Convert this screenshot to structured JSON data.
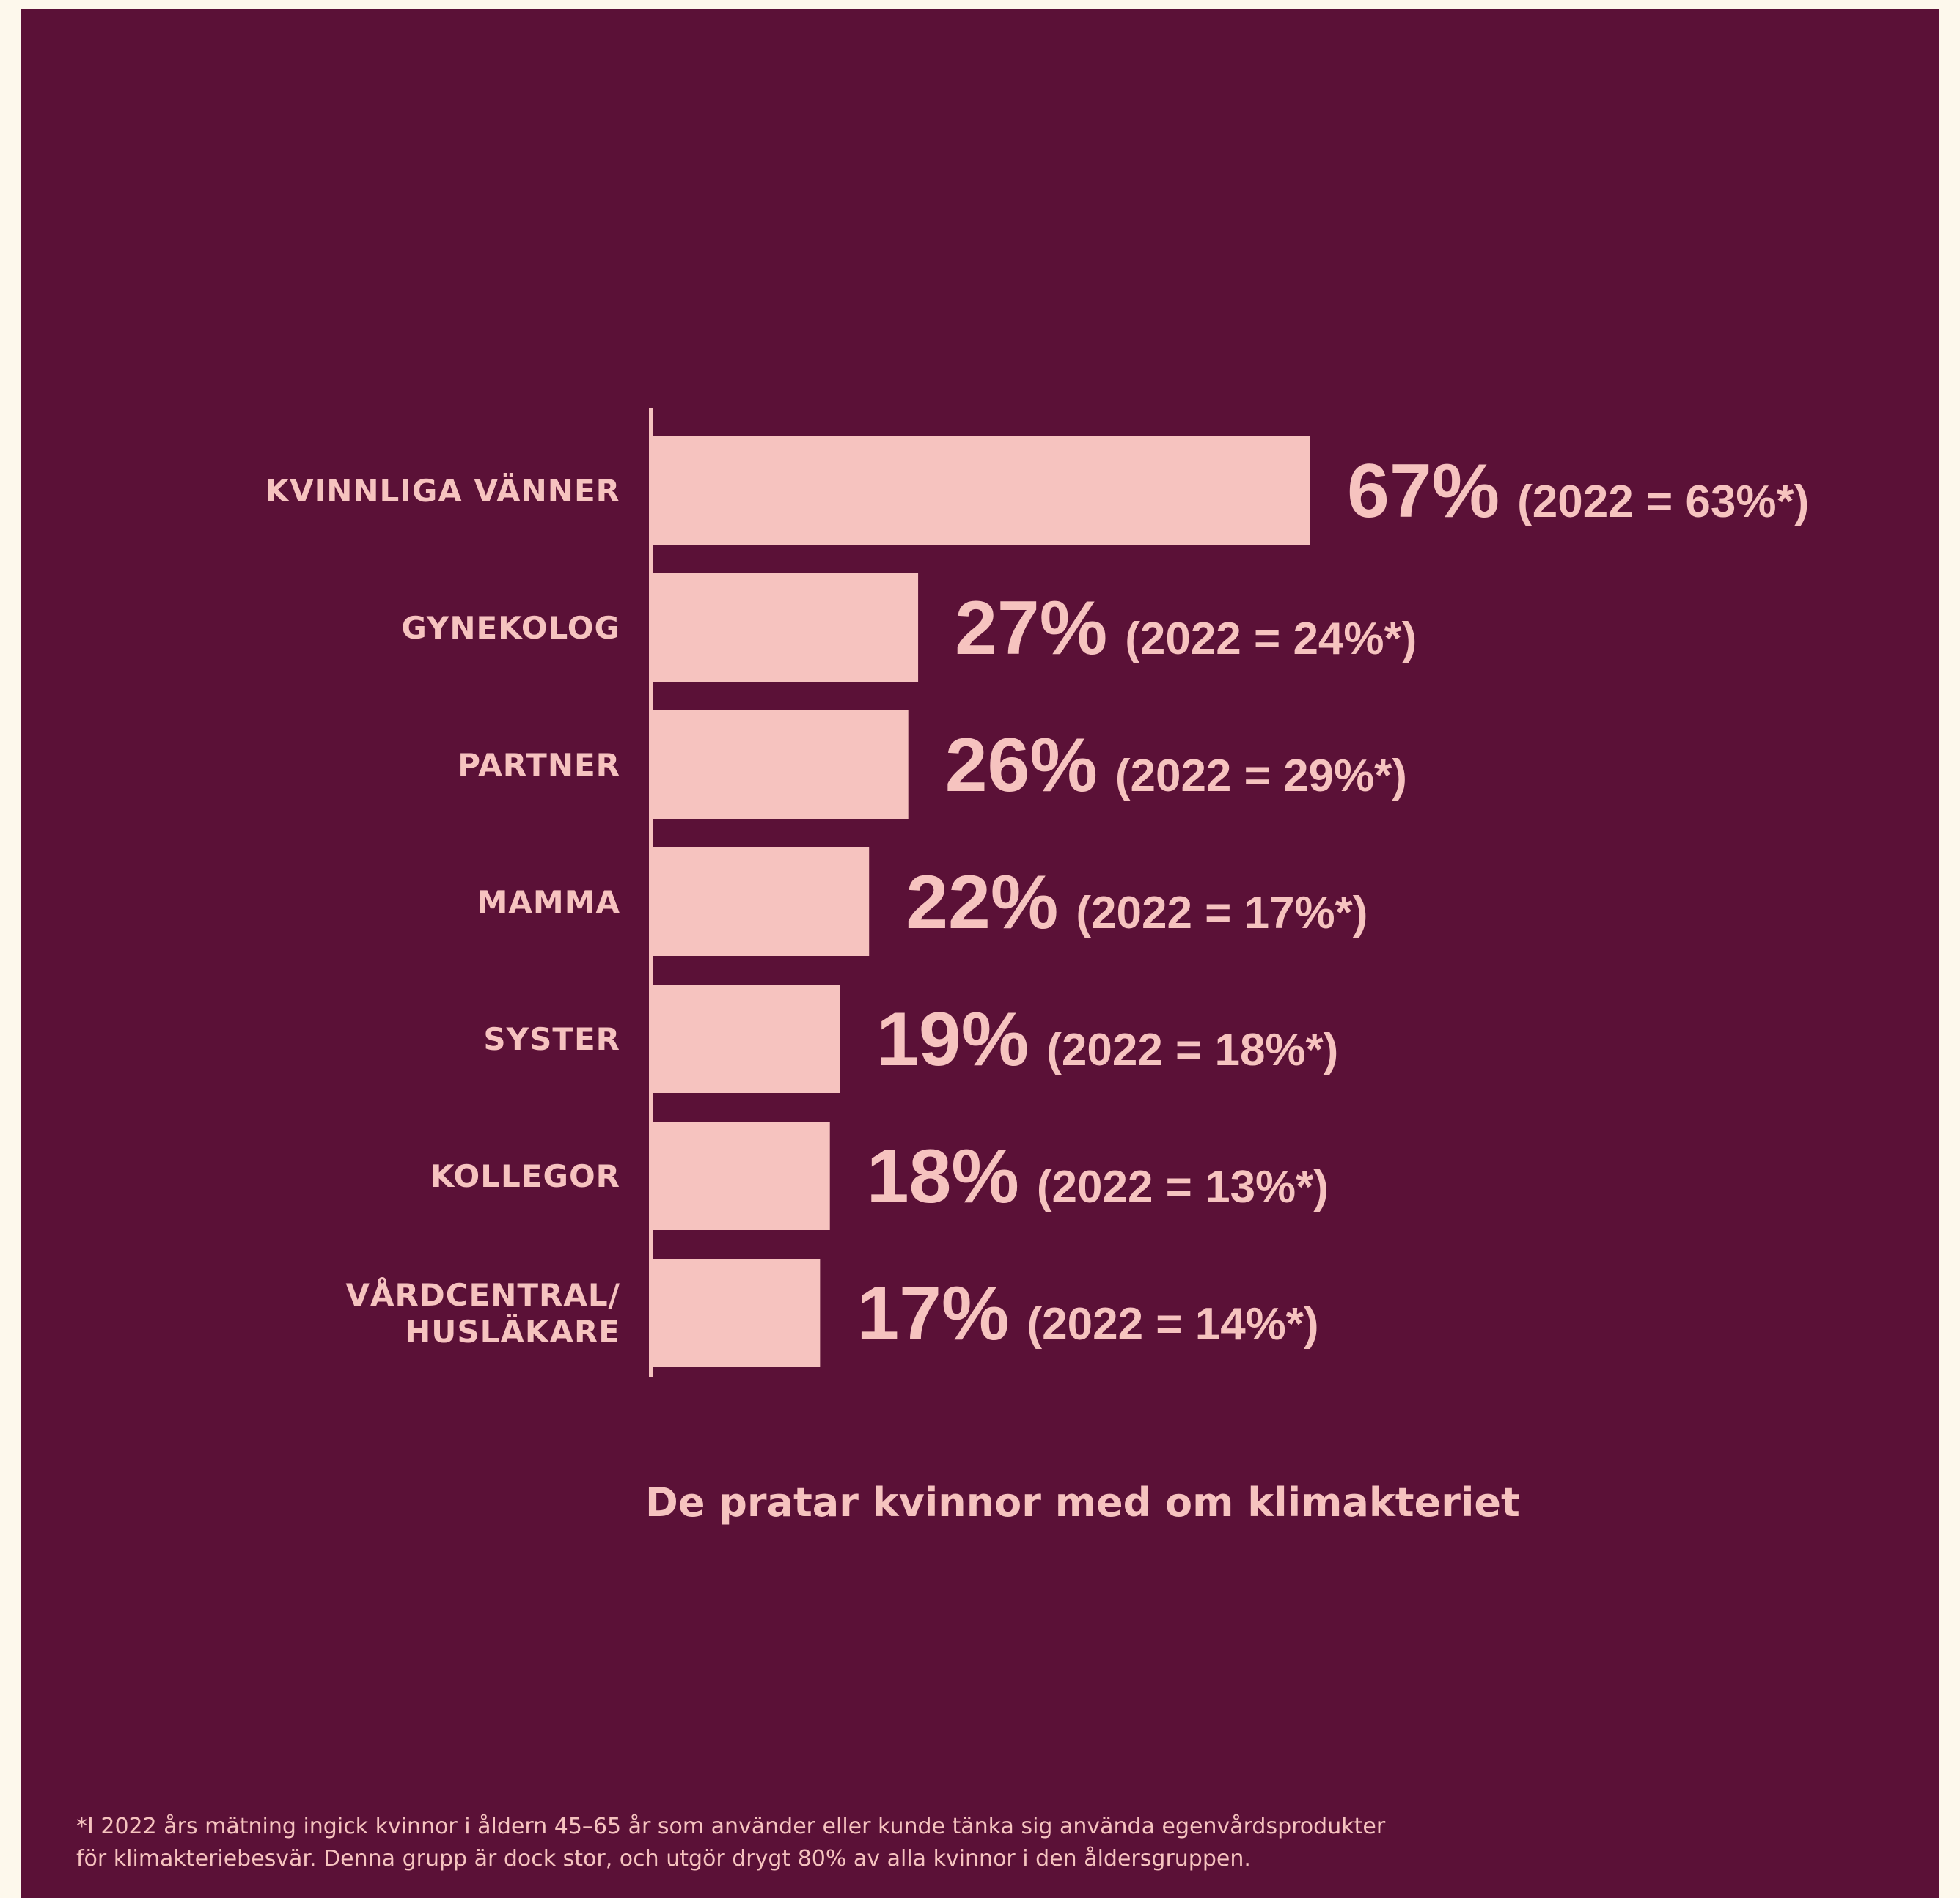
{
  "colors": {
    "page": "#fdf8ec",
    "card": "#5b1137",
    "accent": "#f6c3bf"
  },
  "chart_data": {
    "type": "bar",
    "orientation": "horizontal",
    "title": "De pratar kvinnor med om klimakteriet",
    "categories": [
      "KVINNLIGA VÄNNER",
      "GYNEKOLOG",
      "PARTNER",
      "MAMMA",
      "SYSTER",
      "KOLLEGOR",
      "VÅRDCENTRAL/\nHUSLÄKARE"
    ],
    "values": [
      67,
      27,
      26,
      22,
      19,
      18,
      17
    ],
    "value_labels": [
      "67%",
      "27%",
      "26%",
      "22%",
      "19%",
      "18%",
      "17%"
    ],
    "comparison_labels": [
      "(2022 = 63%*)",
      "(2022 = 24%*)",
      "(2022 = 29%*)",
      "(2022 = 17%*)",
      "(2022 = 18%*)",
      "(2022 = 13%*)",
      "(2022 = 14%*)"
    ],
    "comparison_2022": [
      63,
      24,
      29,
      17,
      18,
      13,
      14
    ],
    "unit": "%",
    "grid": false,
    "legend": "none"
  },
  "footnote": {
    "line1": "*I 2022 års mätning ingick kvinnor i åldern 45–65 år som använder eller kunde tänka sig använda egenvårdsprodukter",
    "line2": "för klimakteriebesvär. Denna grupp är dock stor, och utgör drygt 80% av alla kvinnor i den åldersgruppen."
  }
}
